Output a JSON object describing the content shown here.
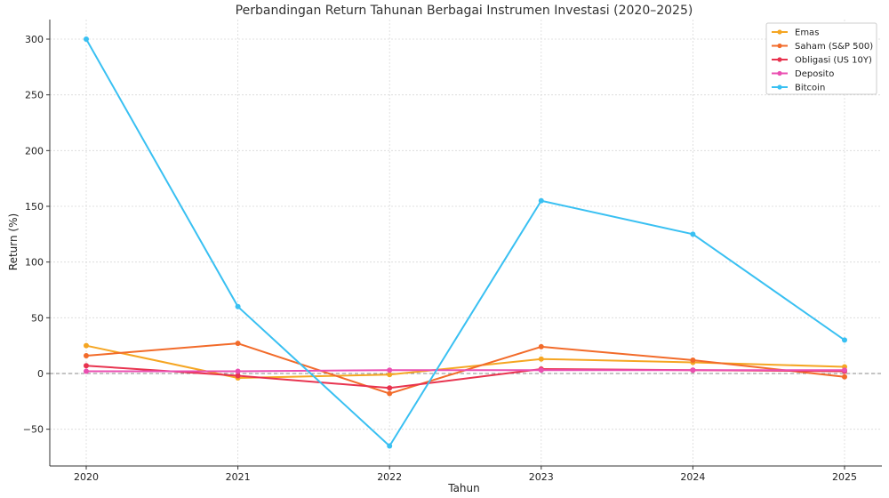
{
  "chart_data": {
    "type": "line",
    "title": "Perbandingan Return Tahunan Berbagai Instrumen Investasi (2020–2025)",
    "xlabel": "Tahun",
    "ylabel": "Return (%)",
    "x": [
      "2020",
      "2021",
      "2022",
      "2023",
      "2024",
      "2025"
    ],
    "ylim": [
      -80,
      320
    ],
    "yticks": [
      -50,
      0,
      50,
      100,
      150,
      200,
      250,
      300
    ],
    "ytick_labels": [
      "−50",
      "0",
      "50",
      "100",
      "150",
      "200",
      "250",
      "300"
    ],
    "grid": true,
    "zero_line": true,
    "legend_position": "top-right",
    "series": [
      {
        "name": "Emas",
        "color": "#f5a623",
        "values": [
          25,
          -4,
          -1,
          13,
          10,
          6
        ]
      },
      {
        "name": "Saham (S&P 500)",
        "color": "#f26b2a",
        "values": [
          16,
          27,
          -18,
          24,
          12,
          -3
        ]
      },
      {
        "name": "Obligasi (US 10Y)",
        "color": "#e8334f",
        "values": [
          7,
          -2,
          -13,
          4,
          3,
          2
        ]
      },
      {
        "name": "Deposito",
        "color": "#ea4fb1",
        "values": [
          2,
          2,
          3,
          3,
          3,
          3
        ]
      },
      {
        "name": "Bitcoin",
        "color": "#39c0f2",
        "values": [
          300,
          60,
          -65,
          155,
          125,
          30
        ]
      }
    ]
  }
}
